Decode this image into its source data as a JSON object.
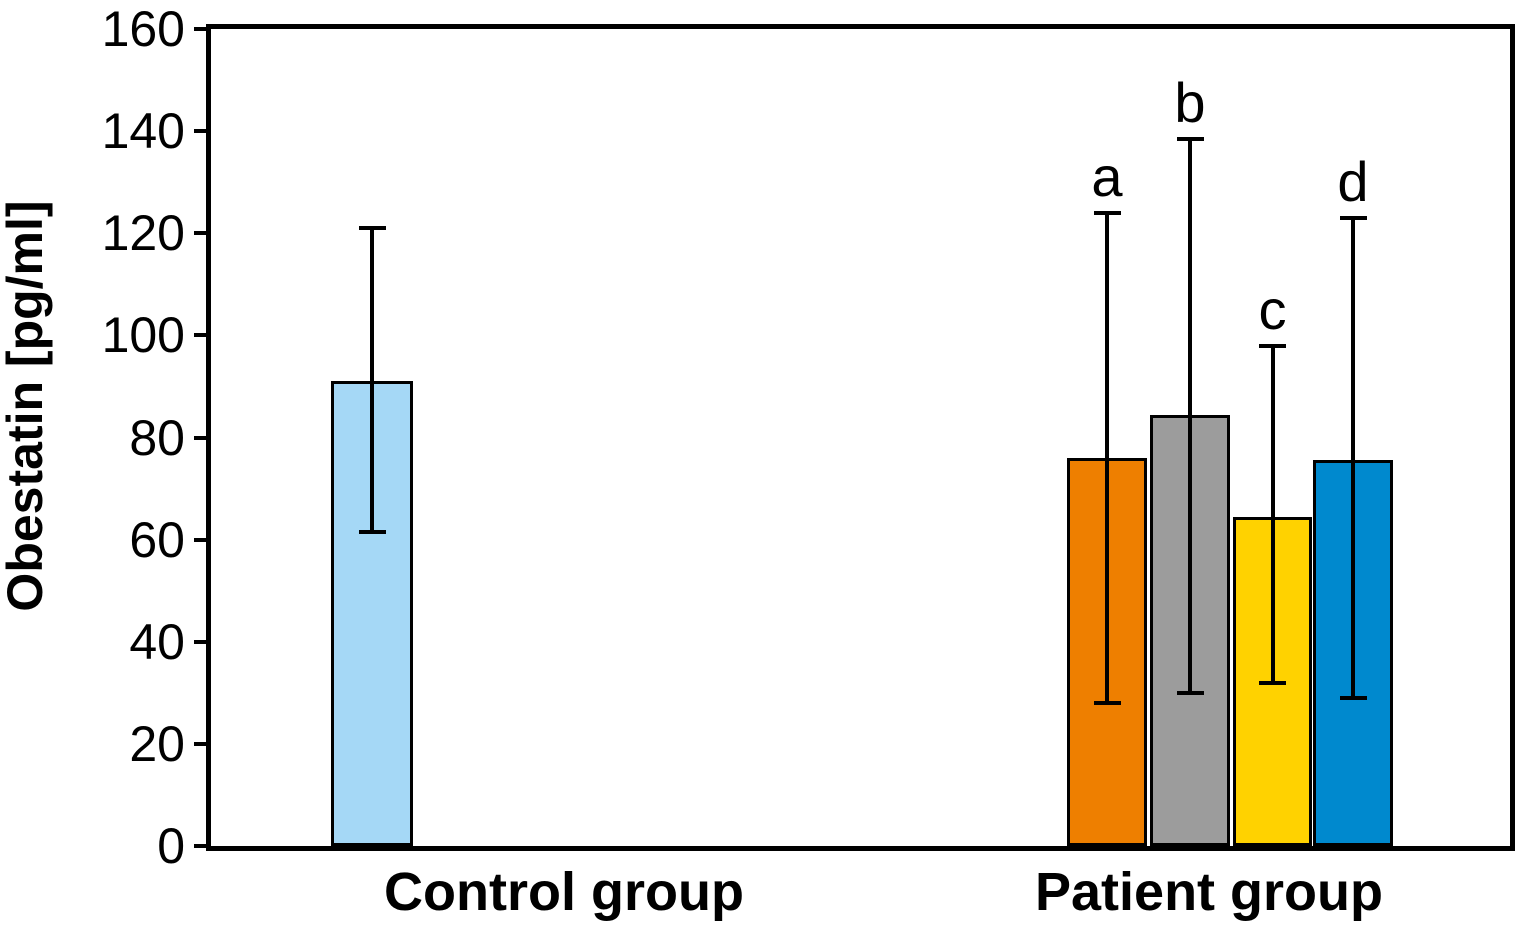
{
  "chart_data": {
    "type": "bar",
    "title": "",
    "ylabel": "Obestatin [pg/ml]",
    "xlabel": "",
    "ylim": [
      0,
      160
    ],
    "yticks": [
      0,
      20,
      40,
      60,
      80,
      100,
      120,
      140,
      160
    ],
    "grid": false,
    "legend_position": "none",
    "plot_border": "box",
    "background_color": "#ffffff",
    "axis_color": "#000000",
    "bar_outline_color": "#000000",
    "error_bar_color": "#000000",
    "groups": [
      {
        "label": "Control group",
        "bars": [
          {
            "label": "Control",
            "value": 91,
            "err_low": 61.5,
            "err_high": 121,
            "color": "#a5d8f6",
            "annotation": ""
          }
        ]
      },
      {
        "label": "Patient group",
        "bars": [
          {
            "label": "a",
            "value": 76,
            "err_low": 28,
            "err_high": 124,
            "color": "#ee7f00",
            "annotation": "a"
          },
          {
            "label": "b",
            "value": 84.5,
            "err_low": 30,
            "err_high": 138.5,
            "color": "#9c9c9c",
            "annotation": "b"
          },
          {
            "label": "c",
            "value": 64.5,
            "err_low": 32,
            "err_high": 98,
            "color": "#ffd200",
            "annotation": "c"
          },
          {
            "label": "d",
            "value": 75.5,
            "err_low": 29,
            "err_high": 123,
            "color": "#0089ce",
            "annotation": "d"
          }
        ]
      }
    ]
  }
}
